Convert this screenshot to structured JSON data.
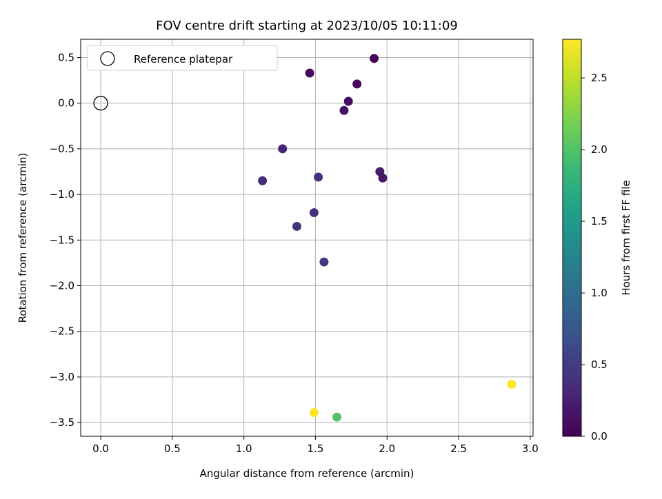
{
  "chart_data": {
    "type": "scatter",
    "title": "FOV centre drift starting at 2023/10/05 10:11:09",
    "xlabel": "Angular distance from reference (arcmin)",
    "ylabel": "Rotation from reference (arcmin)",
    "xlim": [
      -0.14,
      3.02
    ],
    "ylim": [
      -3.65,
      0.7
    ],
    "xticks": [
      0.0,
      0.5,
      1.0,
      1.5,
      2.0,
      2.5,
      3.0
    ],
    "xtick_labels": [
      "0.0",
      "0.5",
      "1.0",
      "1.5",
      "2.0",
      "2.5",
      "3.0"
    ],
    "yticks": [
      0.5,
      0.0,
      -0.5,
      -1.0,
      -1.5,
      -2.0,
      -2.5,
      -3.0,
      -3.5
    ],
    "ytick_labels": [
      "0.5",
      "0.0",
      "−0.5",
      "−1.0",
      "−1.5",
      "−2.0",
      "−2.5",
      "−3.0",
      "−3.5"
    ],
    "grid": true,
    "legend": {
      "placement": "top-left",
      "entries": [
        "Reference platepar"
      ]
    },
    "reference_point": {
      "x": 0.0,
      "y": 0.0
    },
    "colorbar": {
      "label": "Hours from first FF file",
      "colormap": "viridis",
      "range": [
        0.0,
        2.77
      ],
      "ticks": [
        0.0,
        0.5,
        1.0,
        1.5,
        2.0,
        2.5
      ],
      "tick_labels": [
        "0.0",
        "0.5",
        "1.0",
        "1.5",
        "2.0",
        "2.5"
      ],
      "gradient_colors": [
        "#440154",
        "#482878",
        "#3e4989",
        "#31688e",
        "#26828e",
        "#1f9e89",
        "#35b779",
        "#6ece58",
        "#b5de2b",
        "#fde725"
      ]
    },
    "points": [
      {
        "x": 1.91,
        "y": 0.49,
        "hours": 0.05
      },
      {
        "x": 1.46,
        "y": 0.33,
        "hours": 0.08
      },
      {
        "x": 1.79,
        "y": 0.21,
        "hours": 0.05
      },
      {
        "x": 1.73,
        "y": 0.02,
        "hours": 0.1
      },
      {
        "x": 1.7,
        "y": -0.08,
        "hours": 0.15
      },
      {
        "x": 1.27,
        "y": -0.5,
        "hours": 0.3
      },
      {
        "x": 1.95,
        "y": -0.75,
        "hours": 0.22
      },
      {
        "x": 1.97,
        "y": -0.82,
        "hours": 0.18
      },
      {
        "x": 1.13,
        "y": -0.85,
        "hours": 0.35
      },
      {
        "x": 1.52,
        "y": -0.81,
        "hours": 0.38
      },
      {
        "x": 1.49,
        "y": -1.2,
        "hours": 0.4
      },
      {
        "x": 1.37,
        "y": -1.35,
        "hours": 0.42
      },
      {
        "x": 1.56,
        "y": -1.74,
        "hours": 0.45
      },
      {
        "x": 1.49,
        "y": -3.39,
        "hours": 2.75
      },
      {
        "x": 1.65,
        "y": -3.44,
        "hours": 2.0
      },
      {
        "x": 2.87,
        "y": -3.08,
        "hours": 2.77
      }
    ]
  }
}
